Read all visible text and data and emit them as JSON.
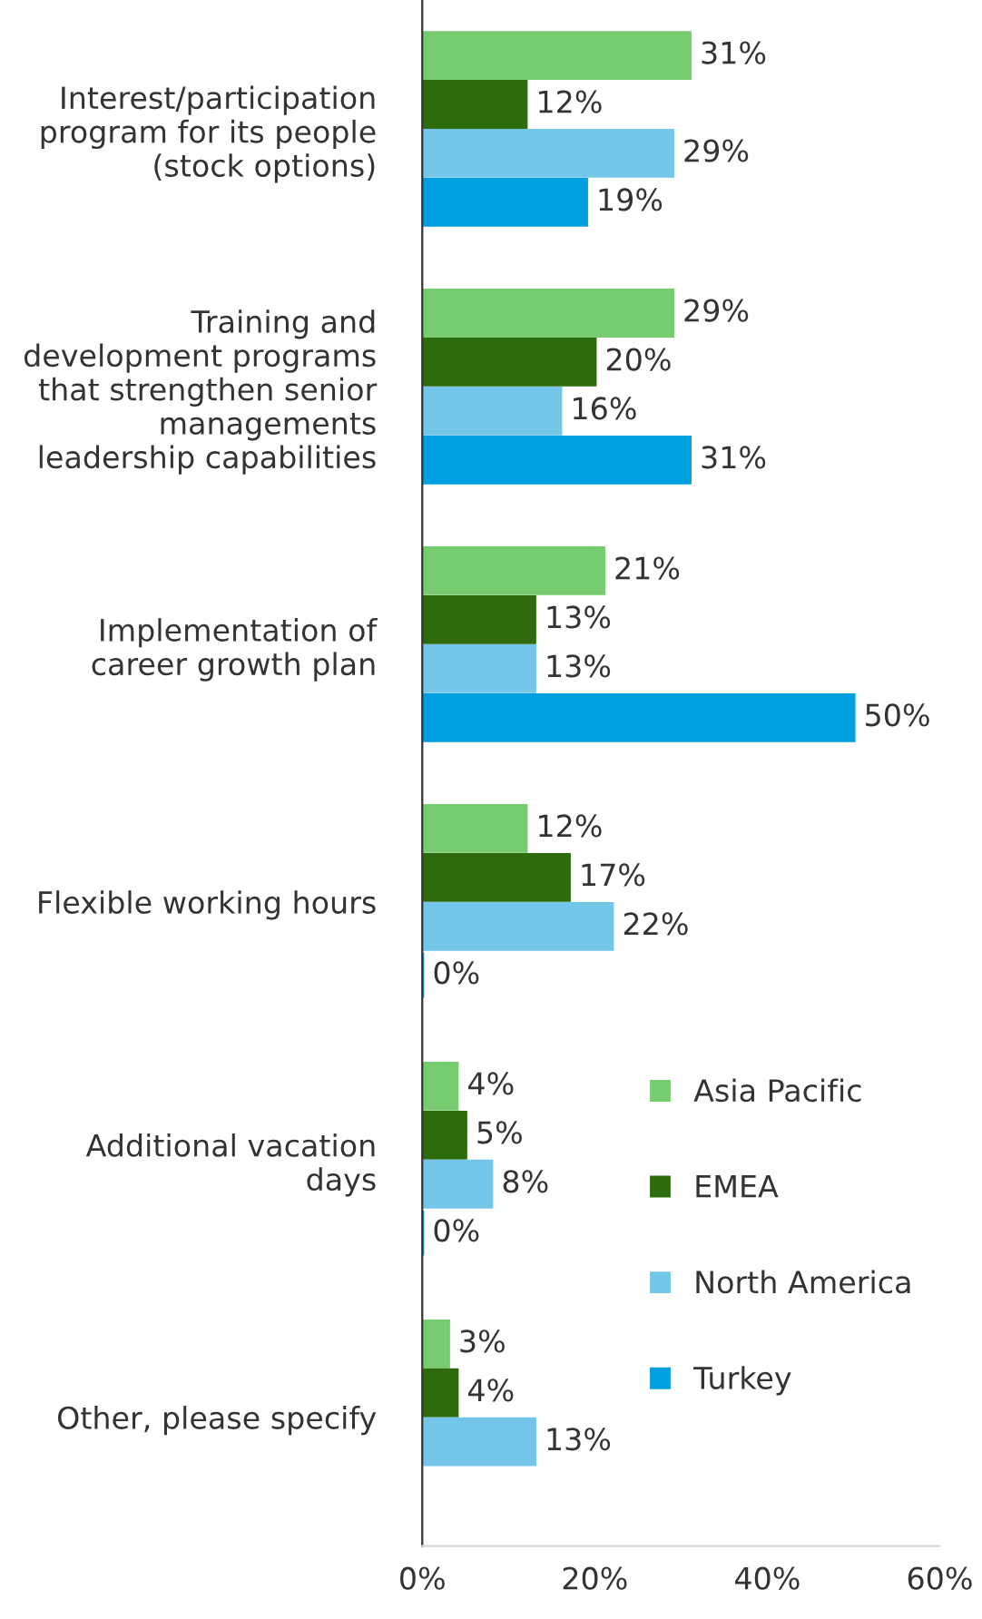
{
  "chart_data": {
    "type": "bar",
    "orientation": "horizontal",
    "categories": [
      "Interest/participation\nprogram for its people\n(stock options)",
      "Training and\ndevelopment programs\nthat strengthen senior\nmanagements\nleadership capabilities",
      "Implementation of\ncareer growth plan",
      "Flexible working hours",
      "Additional vacation\ndays",
      "Other, please specify"
    ],
    "series": [
      {
        "name": "Asia Pacific",
        "color": "#77cc6f",
        "values": [
          31,
          29,
          21,
          12,
          4,
          3
        ],
        "value_labels": [
          "31%",
          "29%",
          "21%",
          "12%",
          "4%",
          "3%"
        ]
      },
      {
        "name": "EMEA",
        "color": "#2e6b0c",
        "values": [
          12,
          20,
          13,
          17,
          5,
          4
        ],
        "value_labels": [
          "12%",
          "20%",
          "13%",
          "17%",
          "5%",
          "4%"
        ]
      },
      {
        "name": "North America",
        "color": "#74c6e8",
        "values": [
          29,
          16,
          13,
          22,
          8,
          13
        ],
        "value_labels": [
          "29%",
          "16%",
          "13%",
          "22%",
          "8%",
          "13%"
        ]
      },
      {
        "name": "Turkey",
        "color": "#00a0e0",
        "values": [
          19,
          31,
          50,
          0,
          0,
          null
        ],
        "value_labels": [
          "19%",
          "31%",
          "50%",
          "0%",
          "0%",
          null
        ]
      }
    ],
    "xlim": [
      0,
      60
    ],
    "xticks": [
      {
        "value": 0,
        "label": "0%"
      },
      {
        "value": 20,
        "label": "20%"
      },
      {
        "value": 40,
        "label": "40%"
      },
      {
        "value": 60,
        "label": "60%"
      }
    ],
    "legend": "bottom right"
  }
}
